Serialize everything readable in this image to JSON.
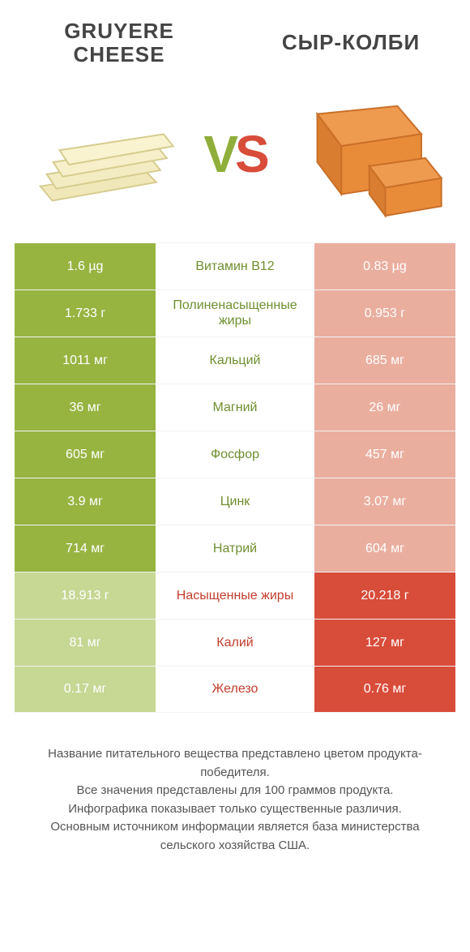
{
  "header": {
    "left_line1": "GRUYERE",
    "left_line2": "CHEESE",
    "right": "СЫР-КОЛБИ"
  },
  "vs": {
    "v": "V",
    "s": "S"
  },
  "colors": {
    "left_winner_bg": "#97b441",
    "left_loser_bg": "#c7d794",
    "right_winner_bg": "#d84c3a",
    "right_loser_bg": "#eaae9f",
    "label_left_win": "#6f8f2f",
    "label_right_win": "#c43e2d",
    "header_text": "#444444",
    "footer_text": "#555555",
    "divider": "#f2f2f2",
    "gruyere_fill": "#f0e8b8",
    "gruyere_stroke": "#d6cc8f",
    "colby_fill": "#e88c3a",
    "colby_stroke": "#c96f28"
  },
  "rows": [
    {
      "left": "1.6 µg",
      "label": "Витамин B12",
      "right": "0.83 µg",
      "winner": "left"
    },
    {
      "left": "1.733 г",
      "label": "Полиненасыщенные жиры",
      "right": "0.953 г",
      "winner": "left"
    },
    {
      "left": "1011 мг",
      "label": "Кальций",
      "right": "685 мг",
      "winner": "left"
    },
    {
      "left": "36 мг",
      "label": "Магний",
      "right": "26 мг",
      "winner": "left"
    },
    {
      "left": "605 мг",
      "label": "Фосфор",
      "right": "457 мг",
      "winner": "left"
    },
    {
      "left": "3.9 мг",
      "label": "Цинк",
      "right": "3.07 мг",
      "winner": "left"
    },
    {
      "left": "714 мг",
      "label": "Натрий",
      "right": "604 мг",
      "winner": "left"
    },
    {
      "left": "18.913 г",
      "label": "Насыщенные жиры",
      "right": "20.218 г",
      "winner": "right"
    },
    {
      "left": "81 мг",
      "label": "Калий",
      "right": "127 мг",
      "winner": "right"
    },
    {
      "left": "0.17 мг",
      "label": "Железо",
      "right": "0.76 мг",
      "winner": "right"
    }
  ],
  "footer": {
    "line1": "Название питательного вещества представлено цветом продукта-победителя.",
    "line2": "Все значения представлены для 100 граммов продукта.",
    "line3": "Инфографика показывает только существенные различия.",
    "line4": "Основным источником информации является база министерства сельского хозяйства США."
  }
}
